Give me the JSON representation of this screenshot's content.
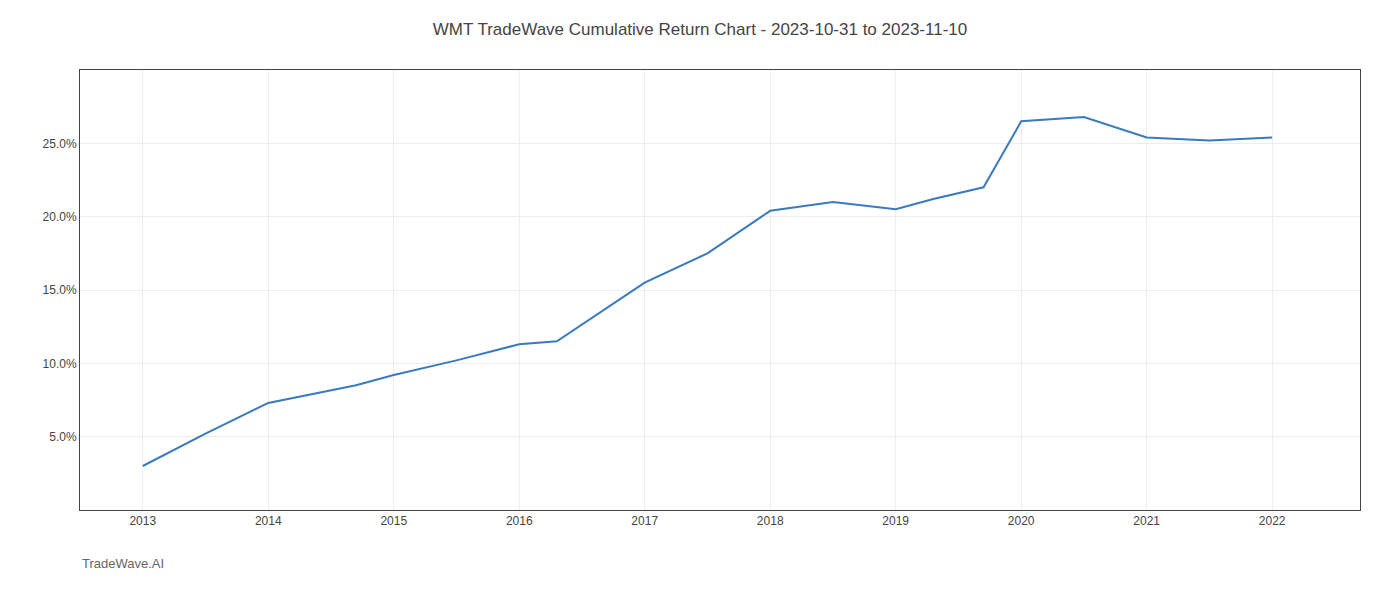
{
  "chart_data": {
    "type": "line",
    "title": "WMT TradeWave Cumulative Return Chart - 2023-10-31 to 2023-11-10",
    "annotations": [
      "TradeWave.AI"
    ],
    "x": [
      2013,
      2013.5,
      2014,
      2014.3,
      2014.7,
      2015,
      2015.5,
      2016,
      2016.3,
      2017,
      2017.5,
      2018,
      2018.5,
      2019,
      2019.3,
      2019.7,
      2020,
      2020.5,
      2021,
      2021.5,
      2022
    ],
    "values": [
      3.0,
      5.2,
      7.3,
      7.8,
      8.5,
      9.2,
      10.2,
      11.3,
      11.5,
      15.5,
      17.5,
      20.4,
      21.0,
      20.5,
      21.2,
      22.0,
      26.5,
      26.8,
      25.4,
      25.2,
      25.4
    ],
    "color": "#3a7abf",
    "xlim": [
      2012.5,
      2022.7
    ],
    "ylim": [
      0,
      30
    ],
    "xticks": [
      2013,
      2014,
      2015,
      2016,
      2017,
      2018,
      2019,
      2020,
      2021,
      2022
    ],
    "yticks": [
      {
        "value": 5.0,
        "label": "5.0%"
      },
      {
        "value": 10.0,
        "label": "10.0%"
      },
      {
        "value": 15.0,
        "label": "15.0%"
      },
      {
        "value": 20.0,
        "label": "20.0%"
      },
      {
        "value": 25.0,
        "label": "25.0%"
      }
    ],
    "grid": true
  }
}
